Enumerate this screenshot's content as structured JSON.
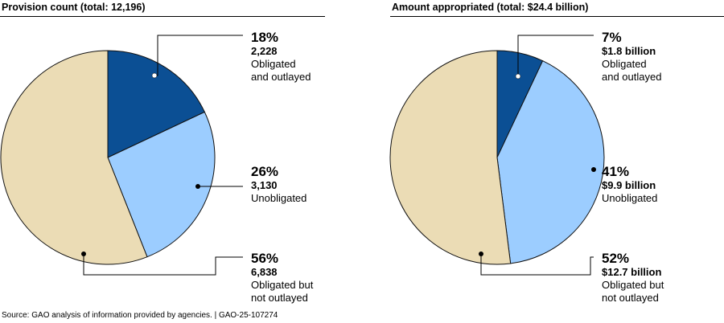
{
  "chart_data": [
    {
      "type": "pie",
      "title": "Provision count (total: 12,196)",
      "slices": [
        {
          "label": "Obligated and outlayed",
          "percent": 18,
          "value": 2228,
          "value_label": "2,228",
          "pct_label": "18%",
          "lines": [
            "Obligated",
            "and outlayed"
          ],
          "color": "#0b4f94"
        },
        {
          "label": "Unobligated",
          "percent": 26,
          "value": 3130,
          "value_label": "3,130",
          "pct_label": "26%",
          "lines": [
            "Unobligated"
          ],
          "color": "#9ccdff"
        },
        {
          "label": "Obligated but not outlayed",
          "percent": 56,
          "value": 6838,
          "value_label": "6,838",
          "pct_label": "56%",
          "lines": [
            "Obligated but",
            "not outlayed"
          ],
          "color": "#ebdcb5"
        }
      ]
    },
    {
      "type": "pie",
      "title": "Amount appropriated (total: $24.4 billion)",
      "slices": [
        {
          "label": "Obligated and outlayed",
          "percent": 7,
          "value": 1.8,
          "value_label": "$1.8 billion",
          "pct_label": "7%",
          "lines": [
            "Obligated",
            "and outlayed"
          ],
          "color": "#0b4f94"
        },
        {
          "label": "Unobligated",
          "percent": 41,
          "value": 9.9,
          "value_label": "$9.9 billion",
          "pct_label": "41%",
          "lines": [
            "Unobligated"
          ],
          "color": "#9ccdff"
        },
        {
          "label": "Obligated but not outlayed",
          "percent": 52,
          "value": 12.7,
          "value_label": "$12.7 billion",
          "pct_label": "52%",
          "lines": [
            "Obligated but",
            "not outlayed"
          ],
          "color": "#ebdcb5"
        }
      ]
    }
  ],
  "source": "Source: GAO analysis of information provided by agencies.  |  GAO-25-107274"
}
